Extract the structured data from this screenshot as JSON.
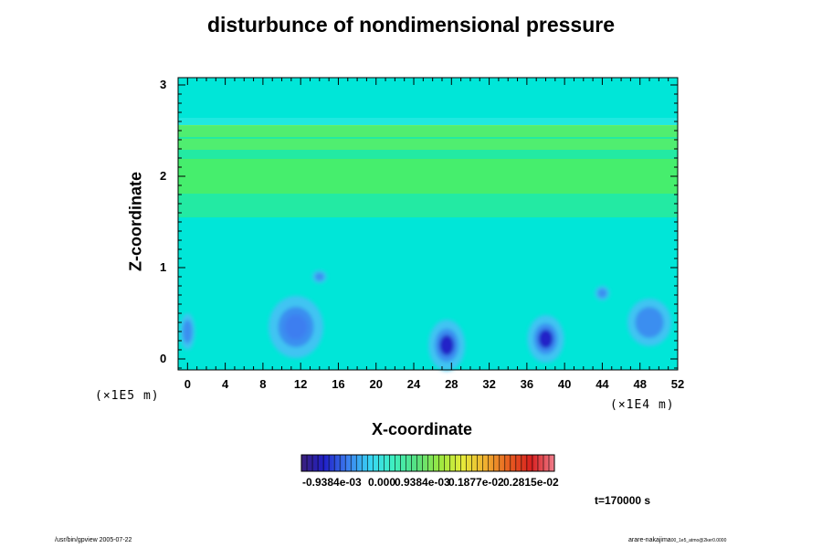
{
  "chart_data": {
    "type": "heatmap",
    "title": "disturbunce of nondimensional pressure",
    "xlabel": "X-coordinate",
    "ylabel": "Z-coordinate",
    "x_unit": "(×1E4 m)",
    "y_unit": "(×1E5 m)",
    "xlim": [
      -1,
      52
    ],
    "ylim": [
      -0.12,
      3.08
    ],
    "x_ticks": [
      0,
      4,
      8,
      12,
      16,
      20,
      24,
      28,
      32,
      36,
      40,
      44,
      48,
      52
    ],
    "y_ticks": [
      0,
      1,
      2,
      3
    ],
    "background_value": 0.0,
    "bands": [
      {
        "z": 2.0,
        "value": 0.0011
      },
      {
        "z": 2.35,
        "value": 0.0008
      },
      {
        "z": 2.5,
        "value": 0.0008
      },
      {
        "z": 2.6,
        "value": 0.0002
      }
    ],
    "features": [
      {
        "x": 11.5,
        "z": 0.35,
        "value": -0.0006
      },
      {
        "x": 27.5,
        "z": 0.15,
        "value": -0.0009
      },
      {
        "x": 38.0,
        "z": 0.22,
        "value": -0.0009
      },
      {
        "x": 49.0,
        "z": 0.4,
        "value": -0.0004
      },
      {
        "x": 0.0,
        "z": 0.3,
        "value": -0.0003
      },
      {
        "x": 14.0,
        "z": 0.9,
        "value": -0.0002
      },
      {
        "x": 44.0,
        "z": 0.72,
        "value": -0.0003
      }
    ],
    "colorbar": {
      "tick_labels": [
        "-0.9384e-03",
        "0.000",
        "0.9384e-03",
        "0.1877e-02",
        "0.2815e-02"
      ],
      "colors": [
        "#3b1f7a",
        "#2020c8",
        "#3c7ef0",
        "#38d6f4",
        "#3ef0c0",
        "#56e080",
        "#9ae840",
        "#e6ec3a",
        "#f0b030",
        "#e86020",
        "#d82020",
        "#f07e8c"
      ]
    },
    "time_label": "t=170000 s"
  },
  "footer": {
    "left": "/usr/bin/gpview 2005-07-22",
    "right": "arare-nakajima",
    "right_sub": "00_1e5_atmo@2ker0.0000"
  },
  "colors": {
    "background": "#00e6d8",
    "band": "#52ef5a"
  }
}
